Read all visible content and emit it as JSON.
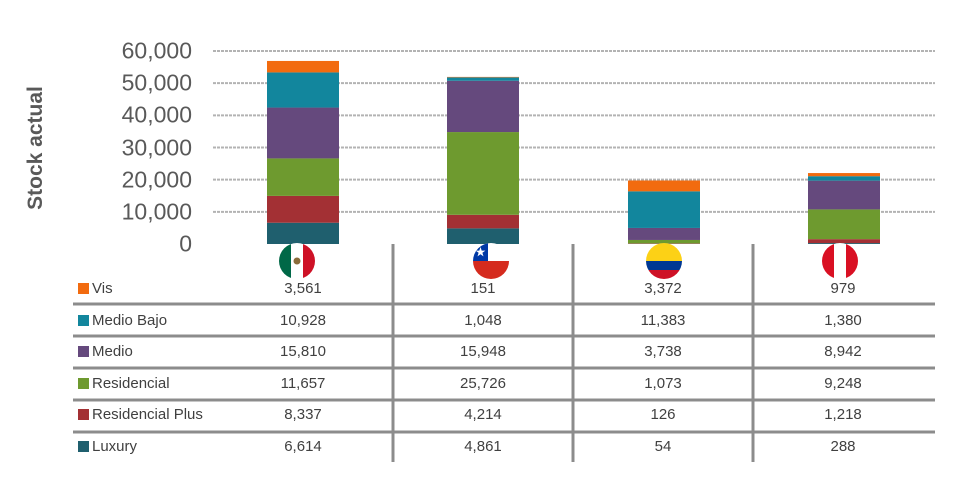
{
  "chart_data": {
    "type": "bar",
    "stacked": true,
    "title": "",
    "xlabel": "",
    "ylabel": "Stock actual",
    "ylim": [
      0,
      60000
    ],
    "yticks": [
      "0",
      "10,000",
      "20,000",
      "30,000",
      "40,000",
      "50,000",
      "60,000"
    ],
    "ytick_values": [
      0,
      10000,
      20000,
      30000,
      40000,
      50000,
      60000
    ],
    "grid": true,
    "categories": [
      "México",
      "Chile",
      "Colombia",
      "Perú"
    ],
    "category_icons": [
      "mexico-flag-icon",
      "chile-flag-icon",
      "colombia-flag-icon",
      "peru-flag-icon"
    ],
    "series": [
      {
        "name": "Luxury",
        "color": "#1f5f6e",
        "values": [
          6614,
          4861,
          54,
          288
        ],
        "labels": [
          "6,614",
          "4,861",
          "54",
          "288"
        ]
      },
      {
        "name": "Residencial Plus",
        "color": "#a33034",
        "values": [
          8337,
          4214,
          126,
          1218
        ],
        "labels": [
          "8,337",
          "4,214",
          "126",
          "1,218"
        ]
      },
      {
        "name": "Residencial",
        "color": "#6e9a2f",
        "values": [
          11657,
          25726,
          1073,
          9248
        ],
        "labels": [
          "11,657",
          "25,726",
          "1,073",
          "9,248"
        ]
      },
      {
        "name": "Medio",
        "color": "#65497d",
        "values": [
          15810,
          15948,
          3738,
          8942
        ],
        "labels": [
          "15,810",
          "15,948",
          "3,738",
          "8,942"
        ]
      },
      {
        "name": "Medio Bajo",
        "color": "#12869d",
        "values": [
          10928,
          1048,
          11383,
          1380
        ],
        "labels": [
          "10,928",
          "1,048",
          "11,383",
          "1,380"
        ]
      },
      {
        "name": "Vis",
        "color": "#f26b0f",
        "values": [
          3561,
          151,
          3372,
          979
        ],
        "labels": [
          "3,561",
          "151",
          "3,372",
          "979"
        ]
      }
    ],
    "table_row_order": [
      "Vis",
      "Medio Bajo",
      "Medio",
      "Residencial",
      "Residencial Plus",
      "Luxury"
    ]
  }
}
